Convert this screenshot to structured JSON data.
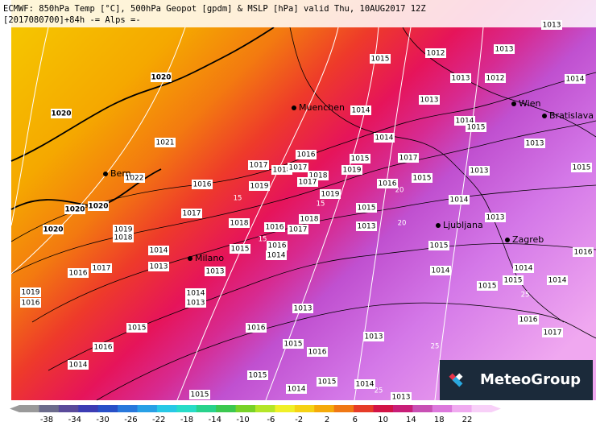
{
  "header": {
    "line1": "ECMWF: 850hPa Temp [°C], 500hPa Geopot [gpdm] & MSLP [hPa] valid Thu, 10AUG2017 12Z",
    "line2": "[2017080700]+84h -= Alps =-"
  },
  "cities": [
    "Muenchen",
    "Wien",
    "Bratislava",
    "Bern",
    "Ljubljana",
    "Zagreb",
    "Milano"
  ],
  "isobar_labels": [
    "1015",
    "1012",
    "1013",
    "1013",
    "1013",
    "1012",
    "1014",
    "1020",
    "1020",
    "1013",
    "1014",
    "1014",
    "1015",
    "1021",
    "1014",
    "1016",
    "1015",
    "1017",
    "1013",
    "1017",
    "1018",
    "1017",
    "1019",
    "1018",
    "1017",
    "1016",
    "1019",
    "1016",
    "1015",
    "1013",
    "1015",
    "1019",
    "1014",
    "1020",
    "1020",
    "1017",
    "1015",
    "1013",
    "1020",
    "1019",
    "1018",
    "1018",
    "1018",
    "1016",
    "1017",
    "1013",
    "1015",
    "1016",
    "1014",
    "1015",
    "1016",
    "1014",
    "1013",
    "1017",
    "1016",
    "1013",
    "1014",
    "1014",
    "1015",
    "1014",
    "1015",
    "1019",
    "1016",
    "1014",
    "1013",
    "1013",
    "1015",
    "1016",
    "1013",
    "1016",
    "1017",
    "1016",
    "1015",
    "1016",
    "1014",
    "1015",
    "1015",
    "1014",
    "1014",
    "1015",
    "1013",
    "1022"
  ],
  "isotherm_labels": [
    "15",
    "15",
    "15",
    "20",
    "20",
    "25",
    "25",
    "25"
  ],
  "colorbar": {
    "ticks": [
      -38,
      -34,
      -30,
      -26,
      -22,
      -18,
      -14,
      -10,
      -6,
      -2,
      2,
      6,
      10,
      14,
      18,
      22
    ]
  },
  "logo": {
    "text": "MeteoGroup"
  }
}
